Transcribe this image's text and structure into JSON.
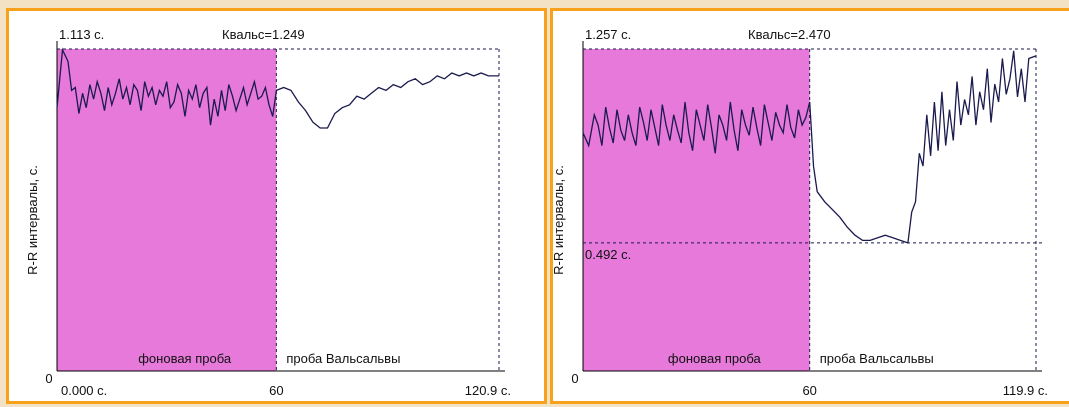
{
  "chart_data": [
    {
      "type": "line",
      "ylabel": "R-R интервалы, с.",
      "y_zero_label": "0",
      "y_max_label": "1.113 с.",
      "y_min_label": "",
      "k_label": "Квальс=1.249",
      "x_start_label": "0.000 с.",
      "x_mid_label": "60",
      "x_end_label": "120.9 с.",
      "segment_labels": [
        "фоновая проба",
        "проба Вальсальвы"
      ],
      "x_range": [
        0,
        120.9
      ],
      "ylim": [
        0,
        1.113
      ],
      "split_x": 60,
      "colors": {
        "background_phase": "#e679da",
        "line": "#1a1a4e",
        "frame": "#f7a21a"
      },
      "series": [
        {
          "x": [
            0,
            1.5,
            3,
            4,
            5,
            6,
            7,
            8,
            9,
            10,
            11,
            12,
            13,
            14,
            15,
            16,
            17,
            18,
            19,
            20,
            21,
            22,
            23,
            24,
            25,
            26,
            27,
            28,
            29,
            30,
            31,
            32,
            33,
            34,
            35,
            36,
            37,
            38,
            39,
            40,
            41,
            42,
            43,
            44,
            45,
            46,
            47,
            48,
            49,
            50,
            51,
            52,
            53,
            54,
            55,
            56,
            57,
            58,
            59,
            60,
            62,
            64,
            66,
            68,
            70,
            72,
            74,
            76,
            78,
            80,
            82,
            84,
            86,
            88,
            90,
            92,
            94,
            96,
            98,
            100,
            102,
            104,
            106,
            108,
            110,
            112,
            114,
            116,
            118,
            120.9
          ],
          "y": [
            0.91,
            1.11,
            1.07,
            0.97,
            0.98,
            0.89,
            0.96,
            0.91,
            0.99,
            0.94,
            1.0,
            0.96,
            0.9,
            0.98,
            0.92,
            0.96,
            1.01,
            0.94,
            0.98,
            0.92,
            0.99,
            0.97,
            0.9,
            1.0,
            0.95,
            0.98,
            0.92,
            0.97,
            0.95,
            1.0,
            0.91,
            0.93,
            0.99,
            0.96,
            0.88,
            0.97,
            0.94,
            0.99,
            0.91,
            0.96,
            0.98,
            0.85,
            0.94,
            0.88,
            0.97,
            0.9,
            0.99,
            0.95,
            0.9,
            0.94,
            0.98,
            0.92,
            0.96,
            1.0,
            0.94,
            0.95,
            0.98,
            0.92,
            0.88,
            0.97,
            0.98,
            0.97,
            0.93,
            0.9,
            0.86,
            0.84,
            0.84,
            0.89,
            0.91,
            0.92,
            0.95,
            0.94,
            0.96,
            0.98,
            0.97,
            0.99,
            0.98,
            1.0,
            1.01,
            0.99,
            1.0,
            1.02,
            1.01,
            1.03,
            1.02,
            1.03,
            1.02,
            1.03,
            1.02,
            1.02
          ]
        }
      ]
    },
    {
      "type": "line",
      "ylabel": "R-R интервалы, с.",
      "y_zero_label": "0",
      "y_max_label": "1.257 с.",
      "y_min_label": "0.492 с.",
      "k_label": "Квальс=2.470",
      "x_start_label": "",
      "x_mid_label": "60",
      "x_end_label": "119.9 с.",
      "segment_labels": [
        "фоновая проба",
        "проба Вальсальвы"
      ],
      "x_range": [
        0,
        119.9
      ],
      "ylim": [
        0,
        1.257
      ],
      "split_x": 60,
      "colors": {
        "background_phase": "#e679da",
        "line": "#1a1a4e",
        "frame": "#f7a21a"
      },
      "series": [
        {
          "x": [
            0,
            1.5,
            3,
            4,
            5,
            6,
            7,
            8,
            9,
            10,
            11,
            12,
            13,
            14,
            15,
            16,
            17,
            18,
            19,
            20,
            21,
            22,
            23,
            24,
            25,
            26,
            27,
            28,
            29,
            30,
            31,
            32,
            33,
            34,
            35,
            36,
            37,
            38,
            39,
            40,
            41,
            42,
            43,
            44,
            45,
            46,
            47,
            48,
            49,
            50,
            51,
            52,
            53,
            54,
            55,
            56,
            57,
            58,
            59,
            60,
            61,
            62,
            64,
            66,
            68,
            70,
            72,
            74,
            76,
            78,
            80,
            82,
            84,
            86,
            87,
            88,
            89,
            90,
            91,
            92,
            93,
            94,
            95,
            96,
            97,
            98,
            99,
            100,
            101,
            102,
            103,
            104,
            105,
            106,
            107,
            108,
            109,
            110,
            111,
            112,
            113,
            114,
            115,
            116,
            117,
            118,
            119.9
          ],
          "y": [
            0.93,
            0.88,
            1.0,
            0.96,
            0.88,
            1.03,
            0.95,
            0.89,
            1.02,
            0.94,
            0.9,
            1.0,
            0.93,
            0.88,
            1.03,
            0.97,
            0.9,
            1.02,
            0.95,
            0.88,
            1.04,
            0.96,
            0.9,
            1.0,
            0.94,
            0.89,
            1.05,
            0.93,
            0.86,
            1.02,
            0.96,
            0.9,
            1.04,
            0.95,
            0.85,
            1.0,
            0.96,
            0.9,
            1.05,
            0.94,
            0.86,
            1.02,
            0.96,
            0.92,
            1.03,
            0.95,
            0.88,
            1.04,
            0.97,
            0.9,
            1.01,
            0.96,
            0.93,
            1.04,
            0.95,
            0.91,
            1.02,
            0.96,
            0.99,
            1.05,
            0.8,
            0.7,
            0.66,
            0.63,
            0.6,
            0.56,
            0.53,
            0.51,
            0.51,
            0.52,
            0.53,
            0.52,
            0.51,
            0.5,
            0.62,
            0.66,
            0.85,
            0.8,
            1.0,
            0.84,
            1.05,
            0.86,
            1.09,
            0.88,
            1.02,
            0.9,
            1.13,
            0.96,
            1.06,
            1.0,
            1.15,
            0.96,
            1.09,
            1.02,
            1.18,
            0.97,
            1.12,
            1.05,
            1.22,
            1.08,
            1.14,
            1.25,
            1.07,
            1.18,
            1.05,
            1.22,
            1.23
          ]
        }
      ]
    }
  ]
}
